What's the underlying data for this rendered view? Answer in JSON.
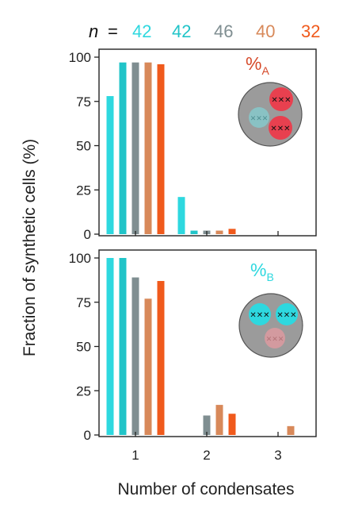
{
  "header": {
    "n_symbol": "n",
    "equals": "=",
    "counts": [
      "42",
      "42",
      "46",
      "40",
      "32"
    ]
  },
  "colors": {
    "series": [
      "#2ed8df",
      "#21c4c8",
      "#7f8e91",
      "#d8895a",
      "#f05a1c"
    ],
    "insetA_label": "#d64a2a",
    "insetB_label": "#2ed8df"
  },
  "chart_data": [
    {
      "type": "bar",
      "panel": "A",
      "categories": [
        "1",
        "2",
        "3"
      ],
      "series": [
        {
          "values": [
            78,
            21,
            0
          ]
        },
        {
          "values": [
            97,
            2,
            0
          ]
        },
        {
          "values": [
            97,
            2,
            0
          ]
        },
        {
          "values": [
            97,
            2,
            0
          ]
        },
        {
          "values": [
            96,
            3,
            0
          ]
        }
      ],
      "ylim": [
        0,
        100
      ],
      "yticks": [
        "0",
        "25",
        "50",
        "75",
        "100"
      ],
      "inset_label_main": "%",
      "inset_label_sub": "A",
      "inset_icon": "cell-with-two-red-condensates"
    },
    {
      "type": "bar",
      "panel": "B",
      "categories": [
        "1",
        "2",
        "3"
      ],
      "series": [
        {
          "values": [
            100,
            0,
            0
          ]
        },
        {
          "values": [
            100,
            0,
            0
          ]
        },
        {
          "values": [
            89,
            11,
            0
          ]
        },
        {
          "values": [
            77,
            17,
            5
          ]
        },
        {
          "values": [
            87,
            12,
            0
          ]
        }
      ],
      "ylim": [
        0,
        100
      ],
      "yticks": [
        "0",
        "25",
        "50",
        "75",
        "100"
      ],
      "xticks": [
        "1",
        "2",
        "3"
      ],
      "inset_label_main": "%",
      "inset_label_sub": "B",
      "inset_icon": "cell-with-two-cyan-condensates"
    }
  ],
  "axes": {
    "ylabel": "Fraction of synthetic cells (%)",
    "xlabel": "Number of condensates"
  }
}
